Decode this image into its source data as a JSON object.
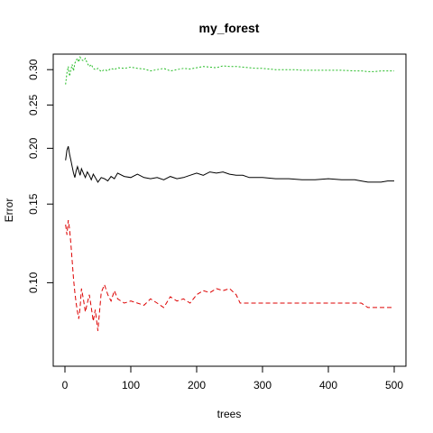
{
  "chart_data": {
    "type": "line",
    "title": "my_forest",
    "xlabel": "trees",
    "ylabel": "Error",
    "xlim": [
      0,
      500
    ],
    "ylim": [
      0.065,
      0.325
    ],
    "y_scale": "log",
    "x_ticks": [
      0,
      100,
      200,
      300,
      400,
      500
    ],
    "x_tick_labels": [
      "0",
      "100",
      "200",
      "300",
      "400",
      "500"
    ],
    "y_ticks": [
      0.1,
      0.15,
      0.2,
      0.25,
      0.3
    ],
    "y_tick_labels": [
      "0.10",
      "0.15",
      "0.20",
      "0.25",
      "0.30"
    ],
    "grid": false,
    "legend": false,
    "series": [
      {
        "color": "#000000",
        "dash": "solid",
        "x": [
          1,
          3,
          5,
          7,
          9,
          11,
          13,
          15,
          17,
          19,
          21,
          23,
          25,
          28,
          31,
          34,
          37,
          40,
          43,
          46,
          50,
          55,
          60,
          65,
          70,
          75,
          80,
          90,
          100,
          110,
          120,
          130,
          140,
          150,
          160,
          170,
          180,
          190,
          200,
          210,
          220,
          230,
          240,
          250,
          260,
          270,
          280,
          290,
          300,
          320,
          340,
          360,
          380,
          400,
          420,
          440,
          450,
          460,
          470,
          480,
          490,
          500
        ],
        "y": [
          0.188,
          0.198,
          0.202,
          0.194,
          0.188,
          0.182,
          0.176,
          0.172,
          0.178,
          0.182,
          0.178,
          0.174,
          0.18,
          0.176,
          0.172,
          0.177,
          0.174,
          0.17,
          0.175,
          0.172,
          0.168,
          0.172,
          0.171,
          0.169,
          0.173,
          0.171,
          0.176,
          0.173,
          0.172,
          0.175,
          0.172,
          0.171,
          0.172,
          0.17,
          0.173,
          0.171,
          0.172,
          0.174,
          0.176,
          0.174,
          0.177,
          0.176,
          0.177,
          0.175,
          0.174,
          0.174,
          0.172,
          0.172,
          0.172,
          0.171,
          0.171,
          0.17,
          0.17,
          0.171,
          0.17,
          0.17,
          0.169,
          0.168,
          0.168,
          0.168,
          0.169,
          0.169
        ]
      },
      {
        "color": "#dd0000",
        "dash": "dashed",
        "x": [
          1,
          3,
          5,
          7,
          9,
          11,
          13,
          15,
          17,
          19,
          21,
          23,
          25,
          28,
          31,
          34,
          37,
          40,
          43,
          46,
          50,
          55,
          60,
          65,
          70,
          75,
          80,
          90,
          100,
          110,
          120,
          130,
          140,
          150,
          160,
          170,
          180,
          190,
          200,
          210,
          220,
          230,
          240,
          250,
          260,
          266,
          280,
          300,
          320,
          340,
          360,
          380,
          400,
          420,
          440,
          450,
          460,
          470,
          480,
          490,
          500
        ],
        "y": [
          0.135,
          0.128,
          0.138,
          0.132,
          0.122,
          0.112,
          0.102,
          0.095,
          0.09,
          0.086,
          0.083,
          0.088,
          0.097,
          0.092,
          0.086,
          0.09,
          0.094,
          0.088,
          0.082,
          0.087,
          0.078,
          0.095,
          0.099,
          0.094,
          0.091,
          0.096,
          0.092,
          0.09,
          0.091,
          0.09,
          0.089,
          0.092,
          0.09,
          0.088,
          0.093,
          0.091,
          0.092,
          0.09,
          0.094,
          0.096,
          0.095,
          0.097,
          0.096,
          0.097,
          0.094,
          0.09,
          0.09,
          0.09,
          0.09,
          0.09,
          0.09,
          0.09,
          0.09,
          0.09,
          0.09,
          0.09,
          0.088,
          0.088,
          0.088,
          0.088,
          0.088
        ]
      },
      {
        "color": "#22bb22",
        "dash": "dotted",
        "x": [
          1,
          3,
          5,
          7,
          9,
          11,
          13,
          15,
          17,
          19,
          21,
          23,
          25,
          28,
          31,
          34,
          37,
          40,
          43,
          46,
          50,
          55,
          60,
          65,
          70,
          75,
          80,
          90,
          100,
          110,
          120,
          130,
          140,
          150,
          160,
          170,
          180,
          190,
          200,
          210,
          220,
          230,
          240,
          250,
          260,
          270,
          280,
          290,
          300,
          320,
          340,
          350,
          360,
          380,
          400,
          420,
          440,
          450,
          460,
          470,
          480,
          490,
          500
        ],
        "y": [
          0.278,
          0.295,
          0.305,
          0.29,
          0.3,
          0.308,
          0.298,
          0.31,
          0.315,
          0.318,
          0.312,
          0.32,
          0.316,
          0.314,
          0.318,
          0.31,
          0.305,
          0.308,
          0.302,
          0.3,
          0.302,
          0.297,
          0.3,
          0.298,
          0.302,
          0.3,
          0.303,
          0.302,
          0.304,
          0.302,
          0.301,
          0.298,
          0.3,
          0.302,
          0.298,
          0.3,
          0.302,
          0.301,
          0.303,
          0.305,
          0.304,
          0.303,
          0.306,
          0.305,
          0.305,
          0.304,
          0.303,
          0.302,
          0.302,
          0.3,
          0.3,
          0.3,
          0.299,
          0.299,
          0.299,
          0.299,
          0.298,
          0.298,
          0.297,
          0.297,
          0.298,
          0.298,
          0.298
        ]
      }
    ]
  }
}
